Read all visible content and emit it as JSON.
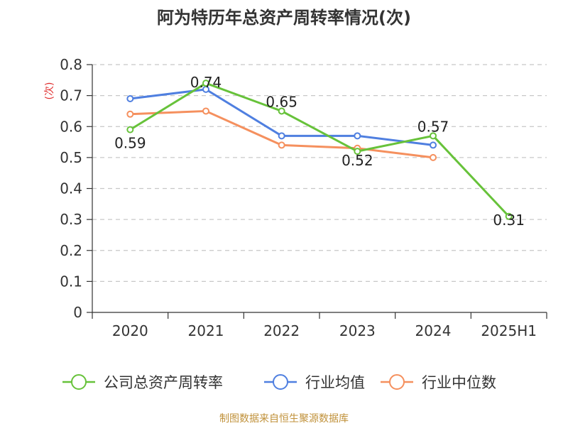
{
  "chart_data": {
    "type": "line",
    "title": "阿为特历年总资产周转率情况(次)",
    "ylabel": "(次)",
    "xlabel": "",
    "categories": [
      "2020",
      "2021",
      "2022",
      "2023",
      "2024",
      "2025H1"
    ],
    "y_ticks": [
      "0",
      "0.1",
      "0.2",
      "0.3",
      "0.4",
      "0.5",
      "0.6",
      "0.7",
      "0.8"
    ],
    "ylim": [
      0,
      0.8
    ],
    "grid": true,
    "legend_position": "bottom",
    "series": [
      {
        "name": "公司总资产周转率",
        "color": "#67c23a",
        "values": [
          0.59,
          0.74,
          0.65,
          0.52,
          0.57,
          0.31
        ],
        "labels": [
          "0.59",
          "0.74",
          "0.65",
          "0.52",
          "0.57",
          "0.31"
        ]
      },
      {
        "name": "行业均值",
        "color": "#4f7fe0",
        "values": [
          0.69,
          0.72,
          0.57,
          0.57,
          0.54,
          null
        ],
        "labels": null
      },
      {
        "name": "行业中位数",
        "color": "#f5905e",
        "values": [
          0.64,
          0.65,
          0.54,
          0.53,
          0.5,
          null
        ],
        "labels": null
      }
    ],
    "source": "制图数据来自恒生聚源数据库"
  }
}
